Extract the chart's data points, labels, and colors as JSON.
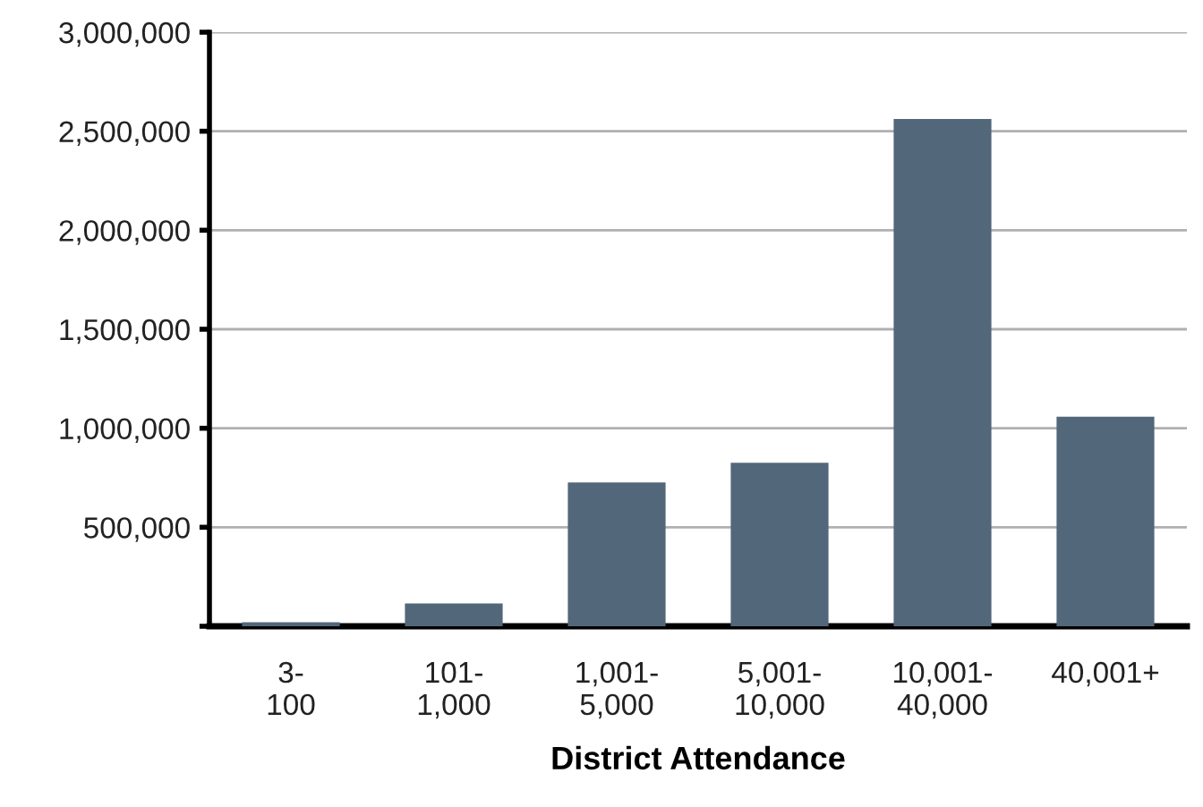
{
  "chart_data": {
    "type": "bar",
    "xlabel": "District Attendance",
    "categories": [
      "3-\n100",
      "101-\n1,000",
      "1,001-\n5,000",
      "5,001-\n10,000",
      "10,001-\n40,000",
      "40,001+"
    ],
    "values": [
      20000,
      115000,
      726000,
      826000,
      2562000,
      1058000
    ],
    "color": "#52677a",
    "ylim": [
      0,
      3000000
    ],
    "yticks": [
      {
        "value": 0,
        "label": null
      },
      {
        "value": 500000,
        "label": "500,000"
      },
      {
        "value": 1000000,
        "label": "1,000,000"
      },
      {
        "value": 1500000,
        "label": "1,500,000"
      },
      {
        "value": 2000000,
        "label": "2,000,000"
      },
      {
        "value": 2500000,
        "label": "2,500,000"
      },
      {
        "value": 3000000,
        "label": "3,000,000"
      }
    ],
    "grid": "y"
  }
}
